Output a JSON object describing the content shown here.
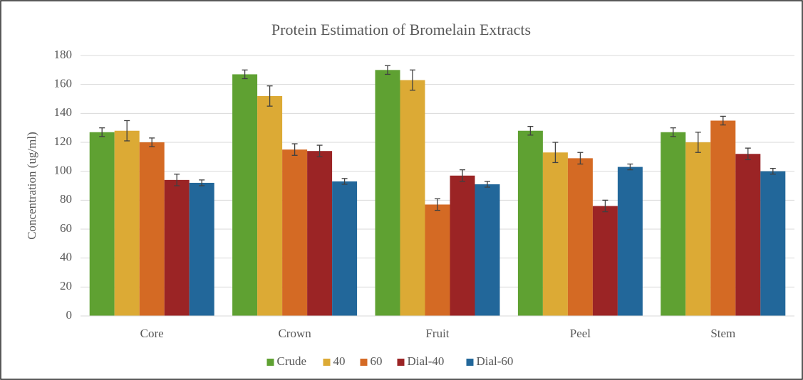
{
  "chart_data": {
    "type": "bar",
    "title": "Protein Estimation  of Bromelain Extracts",
    "y_label": "Concentration (ug/ml)",
    "categories": [
      "Core",
      "Crown",
      "Fruit",
      "Peel",
      "Stem"
    ],
    "series": [
      {
        "name": "Crude",
        "color": "#5fa132",
        "values": [
          127,
          167,
          170,
          128,
          127
        ],
        "errors": [
          3,
          3,
          3,
          3,
          3
        ]
      },
      {
        "name": "40",
        "color": "#dcaa35",
        "values": [
          128,
          152,
          163,
          113,
          120
        ],
        "errors": [
          7,
          7,
          7,
          7,
          7
        ]
      },
      {
        "name": "60",
        "color": "#d46a24",
        "values": [
          120,
          115,
          77,
          109,
          135
        ],
        "errors": [
          3,
          4,
          4,
          4,
          3
        ]
      },
      {
        "name": "Dial-40",
        "color": "#9b2425",
        "values": [
          94,
          114,
          97,
          76,
          112
        ],
        "errors": [
          4,
          4,
          4,
          4,
          4
        ]
      },
      {
        "name": "Dial-60",
        "color": "#22679a",
        "values": [
          92,
          93,
          91,
          103,
          100
        ],
        "errors": [
          2,
          2,
          2,
          2,
          2
        ]
      }
    ],
    "ylim": [
      0,
      180
    ],
    "yticks": [
      0,
      20,
      40,
      60,
      80,
      100,
      120,
      140,
      160,
      180
    ],
    "grid": true,
    "legend": "bottom"
  }
}
